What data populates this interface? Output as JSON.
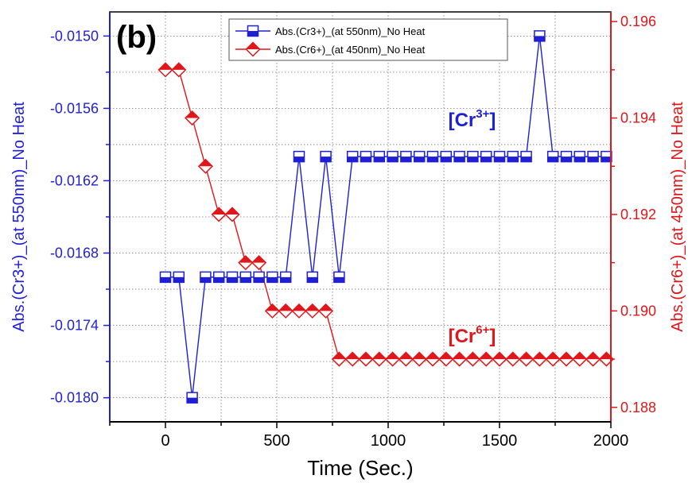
{
  "chart_data": {
    "type": "line",
    "panel_label": "(b)",
    "xlabel": "Time (Sec.)",
    "ylabel_left": "Abs.(Cr3+)_(at 550nm)_No Heat",
    "ylabel_right": "Abs.(Cr6+)_(at 450nm)_No Heat",
    "xlim": [
      -250,
      2000
    ],
    "ylim_left": [
      -0.0182,
      -0.0148
    ],
    "ylim_right": [
      0.1877,
      0.1962
    ],
    "x_ticks": [
      0,
      500,
      1000,
      1500,
      2000
    ],
    "y_left_ticks": [
      -0.015,
      -0.0156,
      -0.0162,
      -0.0168,
      -0.0174,
      -0.018
    ],
    "y_left_tick_labels": [
      "-0.0150",
      "-0.0156",
      "-0.0162",
      "-0.0168",
      "-0.0174",
      "-0.0180"
    ],
    "y_right_ticks": [
      0.196,
      0.194,
      0.192,
      0.19,
      0.188
    ],
    "y_right_tick_labels": [
      "0.196",
      "0.194",
      "0.192",
      "0.190",
      "0.188"
    ],
    "grid": true,
    "legend_position": "top-center",
    "x": [
      0,
      60,
      120,
      180,
      240,
      300,
      360,
      420,
      480,
      540,
      600,
      660,
      720,
      780,
      840,
      900,
      960,
      1020,
      1080,
      1140,
      1200,
      1260,
      1320,
      1380,
      1440,
      1500,
      1560,
      1620,
      1680,
      1740,
      1800,
      1860,
      1920,
      1980
    ],
    "series": [
      {
        "name": "Abs.(Cr3+)_(at 550nm)_No Heat",
        "axis": "left",
        "color": "#1f1fd6",
        "marker": "half-filled-square",
        "values": [
          -0.017,
          -0.017,
          -0.018,
          -0.017,
          -0.017,
          -0.017,
          -0.017,
          -0.017,
          -0.017,
          -0.017,
          -0.016,
          -0.017,
          -0.016,
          -0.017,
          -0.016,
          -0.016,
          -0.016,
          -0.016,
          -0.016,
          -0.016,
          -0.016,
          -0.016,
          -0.016,
          -0.016,
          -0.016,
          -0.016,
          -0.016,
          -0.016,
          -0.015,
          -0.016,
          -0.016,
          -0.016,
          -0.016,
          -0.016
        ]
      },
      {
        "name": "Abs.(Cr6+)_(at 450nm)_No Heat",
        "axis": "right",
        "color": "#e0161a",
        "marker": "half-filled-diamond",
        "values": [
          0.195,
          0.195,
          0.194,
          0.193,
          0.192,
          0.192,
          0.191,
          0.191,
          0.19,
          0.19,
          0.19,
          0.19,
          0.19,
          0.189,
          0.189,
          0.189,
          0.189,
          0.189,
          0.189,
          0.189,
          0.189,
          0.189,
          0.189,
          0.189,
          0.189,
          0.189,
          0.189,
          0.189,
          0.189,
          0.189,
          0.189,
          0.189,
          0.189,
          0.189
        ]
      }
    ],
    "annotations": [
      {
        "base": "[Cr",
        "sup": "3+",
        "end": "]",
        "color": "#1f1fd6",
        "x": 1270,
        "y_axis": "left",
        "y": -0.01575
      },
      {
        "base": "[Cr",
        "sup": "6+",
        "end": "]",
        "color": "#e0161a",
        "x": 1270,
        "y_axis": "right",
        "y": 0.18935
      }
    ]
  }
}
